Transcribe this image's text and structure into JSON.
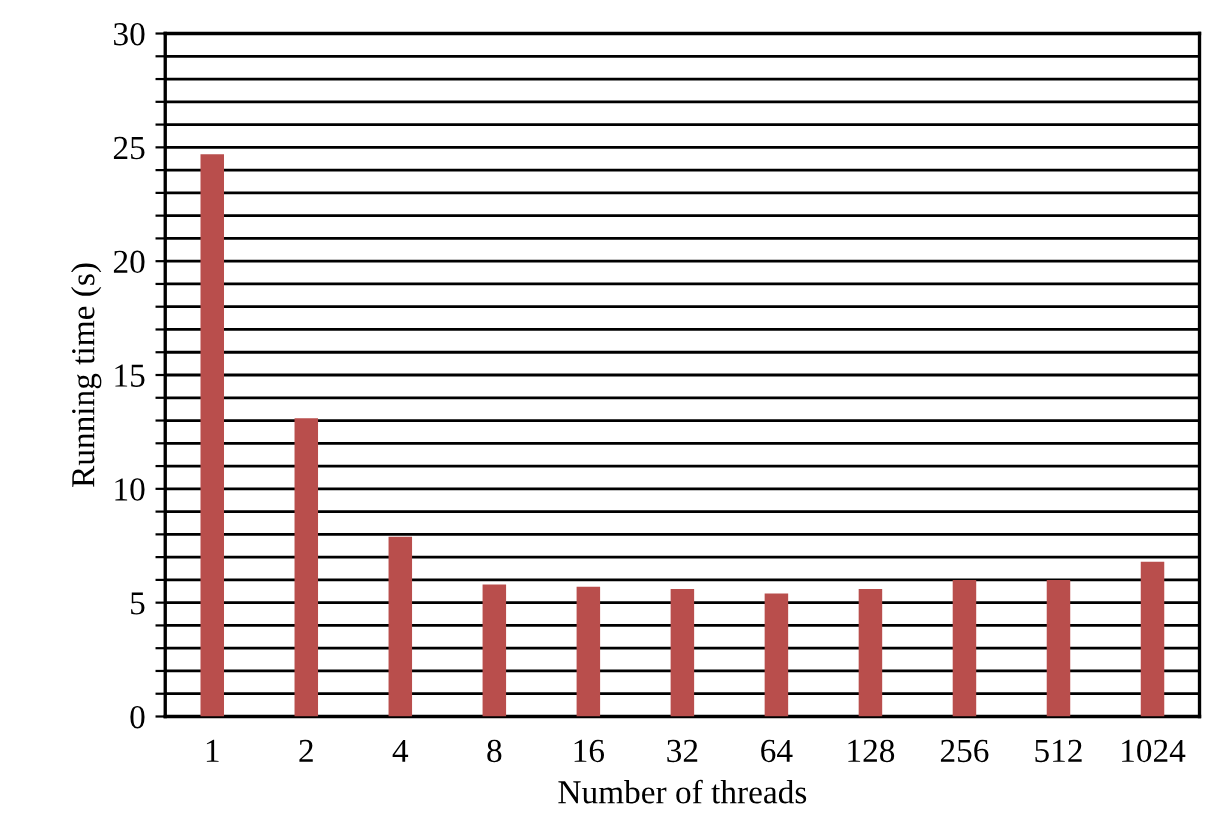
{
  "chart_data": {
    "type": "bar",
    "xlabel": "Number of threads",
    "ylabel": "Running time (s)",
    "categories": [
      "1",
      "2",
      "4",
      "8",
      "16",
      "32",
      "64",
      "128",
      "256",
      "512",
      "1024"
    ],
    "values": [
      24.7,
      13.1,
      7.9,
      5.8,
      5.7,
      5.6,
      5.4,
      5.6,
      6.0,
      6.0,
      6.8
    ],
    "color": "#b94e4c",
    "ylim": [
      0,
      30
    ],
    "yticks": [
      0,
      {
        "value": 1,
        "label": null
      },
      {
        "value": 2,
        "label": null
      },
      {
        "value": 3,
        "label": null
      },
      {
        "value": 4,
        "label": null
      },
      5,
      {
        "value": 6,
        "label": null
      },
      {
        "value": 7,
        "label": null
      },
      {
        "value": 8,
        "label": null
      },
      {
        "value": 9,
        "label": null
      },
      10,
      {
        "value": 11,
        "label": null
      },
      {
        "value": 12,
        "label": null
      },
      {
        "value": 13,
        "label": null
      },
      {
        "value": 14,
        "label": null
      },
      15,
      {
        "value": 16,
        "label": null
      },
      {
        "value": 17,
        "label": null
      },
      {
        "value": 18,
        "label": null
      },
      {
        "value": 19,
        "label": null
      },
      20,
      {
        "value": 21,
        "label": null
      },
      {
        "value": 22,
        "label": null
      },
      {
        "value": 23,
        "label": null
      },
      {
        "value": 24,
        "label": null
      },
      25,
      {
        "value": 26,
        "label": null
      },
      {
        "value": 27,
        "label": null
      },
      {
        "value": 28,
        "label": null
      },
      {
        "value": 29,
        "label": null
      },
      30
    ],
    "grid": "y"
  }
}
